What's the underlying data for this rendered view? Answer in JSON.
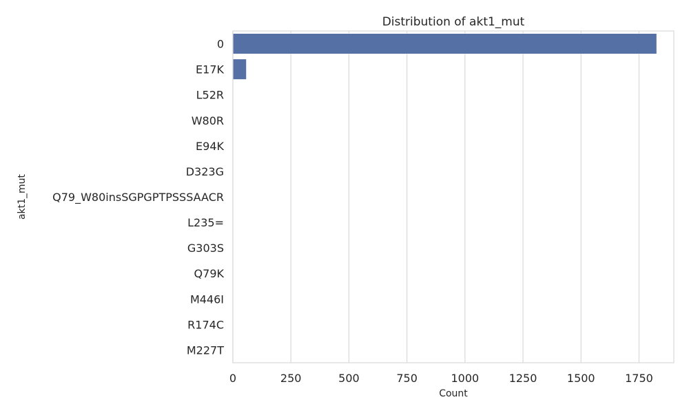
{
  "chart_data": {
    "type": "bar",
    "orientation": "horizontal",
    "title": "Distribution of akt1_mut",
    "xlabel": "Count",
    "ylabel": "akt1_mut",
    "xlim": [
      0,
      1900
    ],
    "xticks": [
      0,
      250,
      500,
      750,
      1000,
      1250,
      1500,
      1750
    ],
    "grid": "vertical",
    "bar_color": "#5470a5",
    "categories": [
      "0",
      "E17K",
      "L52R",
      "W80R",
      "E94K",
      "D323G",
      "Q79_W80insSGPGPTPSSSAACR",
      "L235=",
      "G303S",
      "Q79K",
      "M446I",
      "R174C",
      "M227T"
    ],
    "values": [
      1826,
      58,
      1,
      1,
      1,
      1,
      1,
      1,
      1,
      1,
      1,
      1,
      1
    ]
  }
}
